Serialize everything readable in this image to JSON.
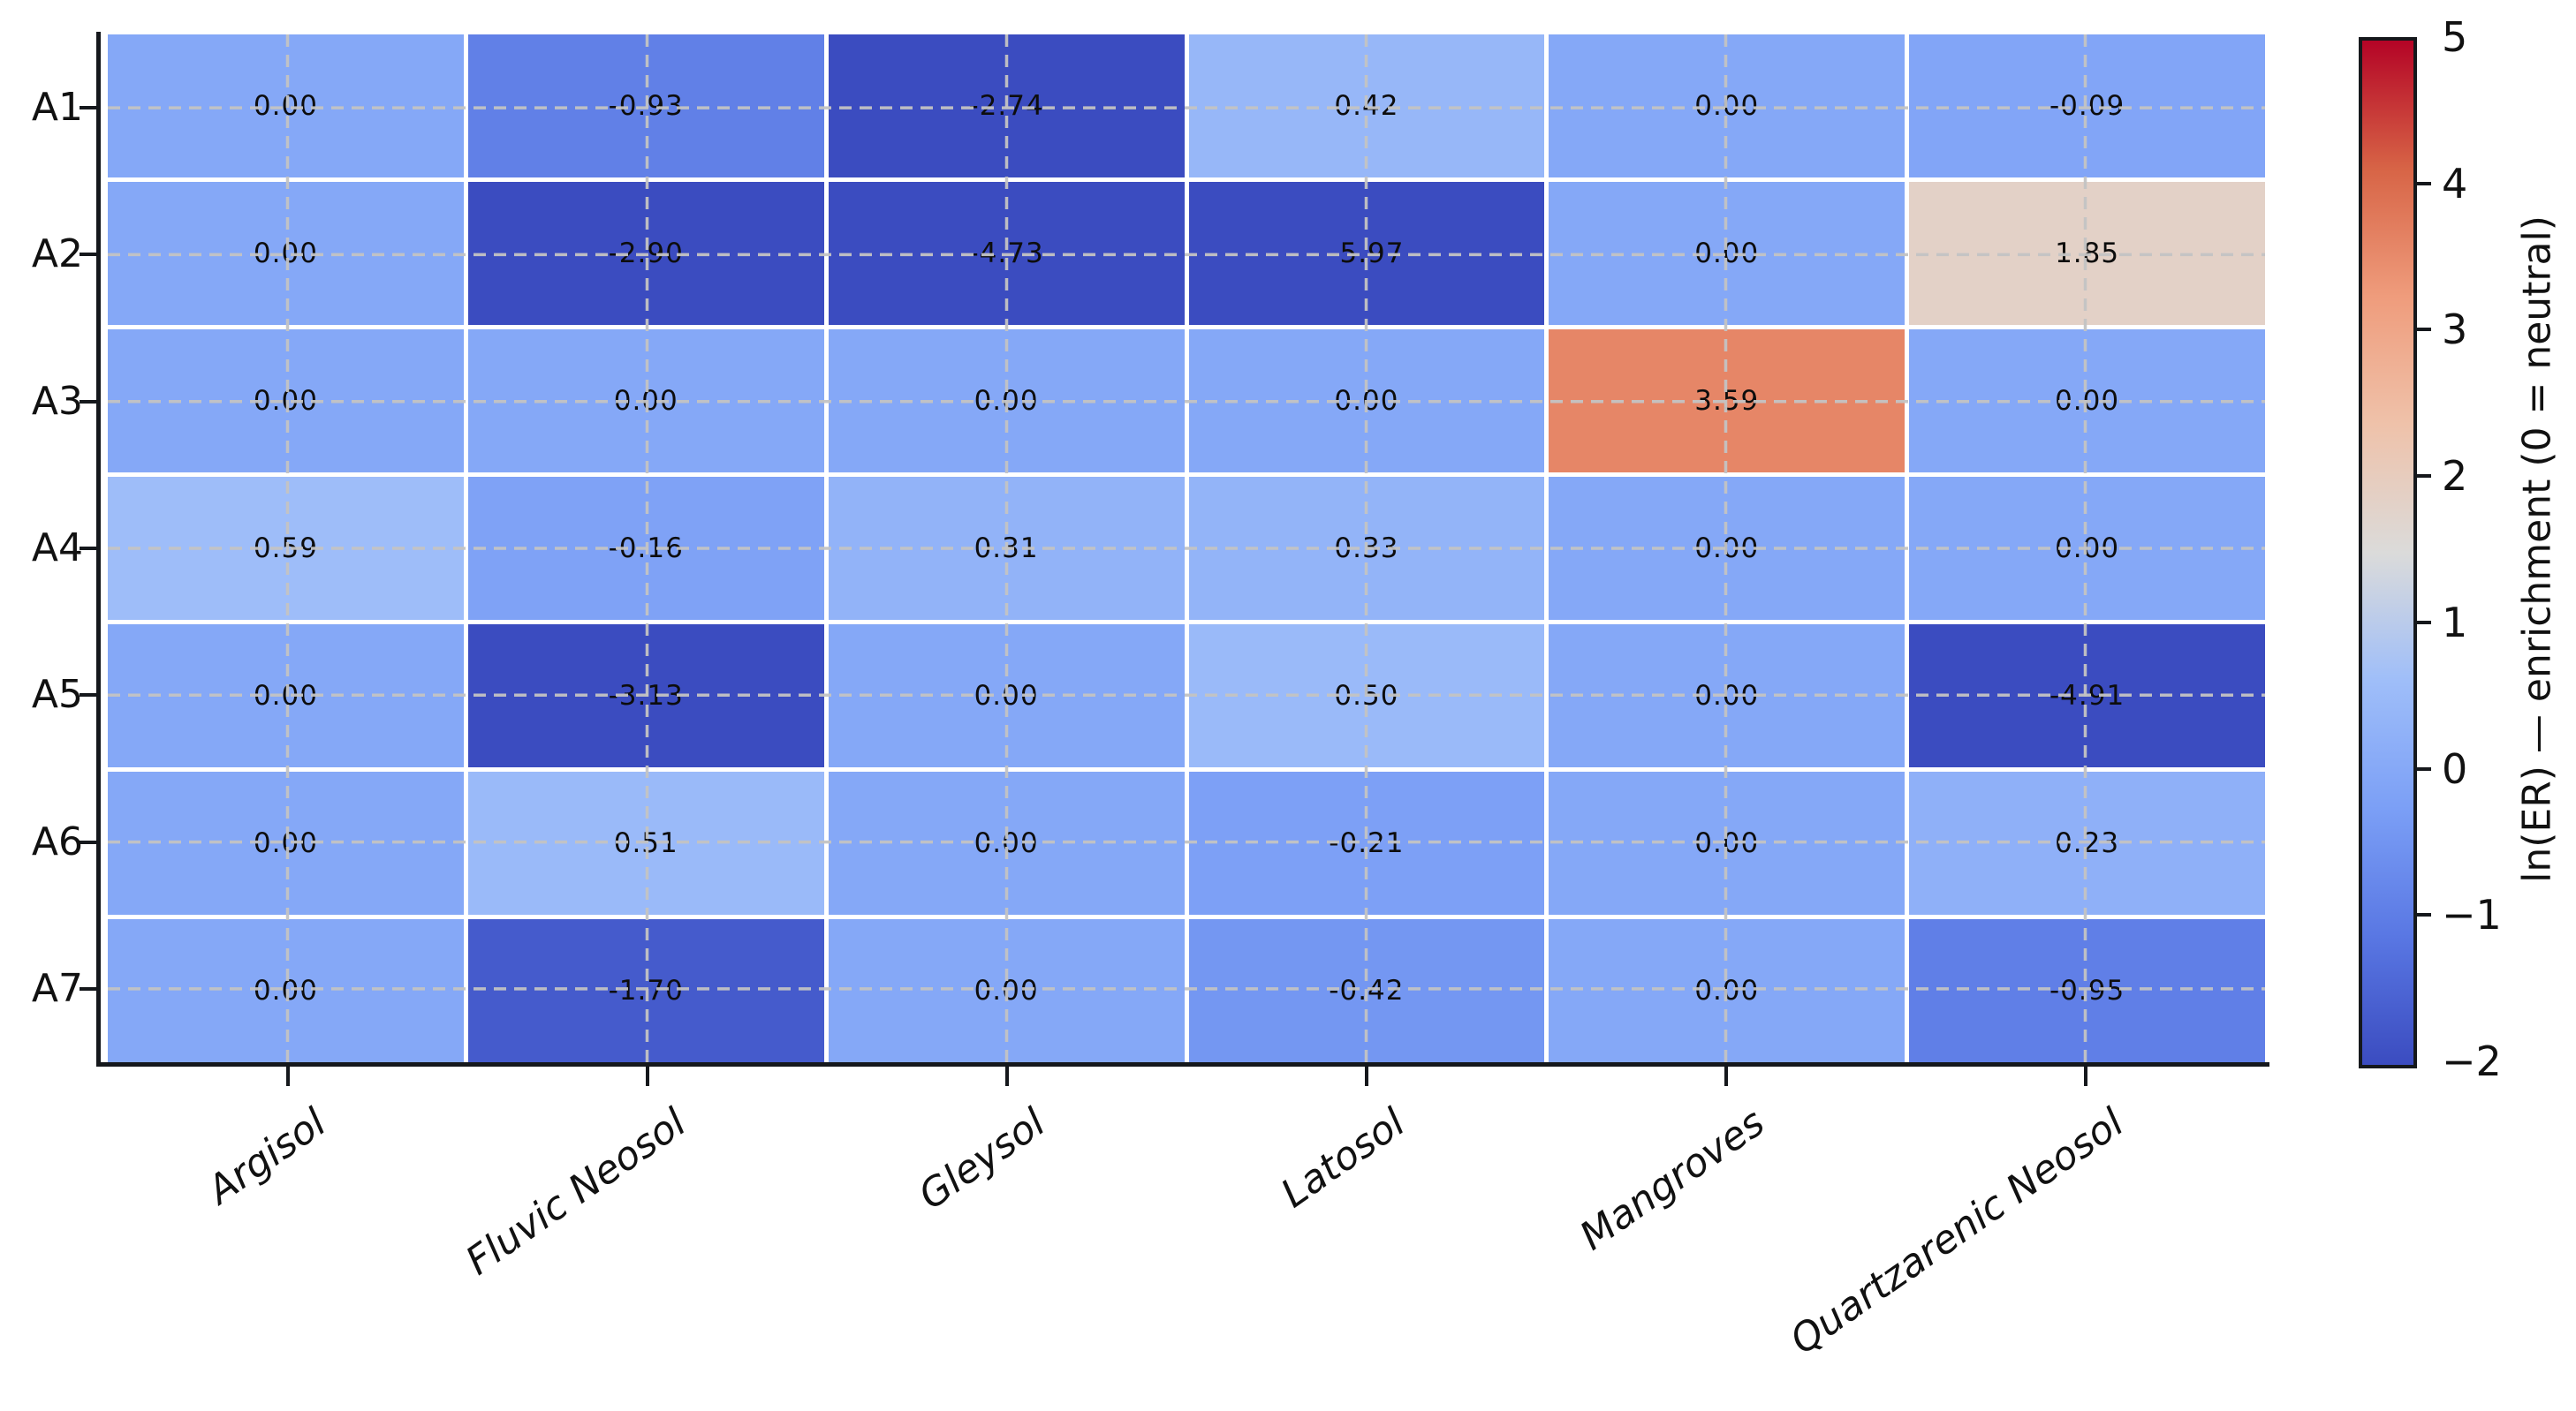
{
  "chart_data": {
    "type": "heatmap",
    "rows": [
      "A1",
      "A2",
      "A3",
      "A4",
      "A5",
      "A6",
      "A7"
    ],
    "columns": [
      "Argisol",
      "Fluvic Neosol",
      "Gleysol",
      "Latosol",
      "Mangroves",
      "Quartzarenic Neosol"
    ],
    "values": [
      [
        0.0,
        -0.93,
        -2.74,
        0.42,
        0.0,
        -0.09
      ],
      [
        0.0,
        -2.9,
        -4.73,
        -5.97,
        0.0,
        1.85
      ],
      [
        0.0,
        0.0,
        0.0,
        0.0,
        3.59,
        0.0
      ],
      [
        0.59,
        -0.16,
        0.31,
        0.33,
        0.0,
        0.0
      ],
      [
        0.0,
        -3.13,
        0.0,
        0.5,
        0.0,
        -4.91
      ],
      [
        0.0,
        0.51,
        0.0,
        -0.21,
        0.0,
        0.23
      ],
      [
        0.0,
        -1.7,
        0.0,
        -0.42,
        0.0,
        -0.95
      ]
    ],
    "value_format_decimals": 2,
    "annotation_color": "#0d0d0d",
    "grid": {
      "dashed": true,
      "color": "#c4c4c4"
    },
    "colormap": {
      "name": "coolwarm",
      "anchors": [
        [
          0.0,
          59,
          76,
          192
        ],
        [
          0.125,
          89,
          119,
          227
        ],
        [
          0.25,
          123,
          159,
          246
        ],
        [
          0.375,
          159,
          190,
          249
        ],
        [
          0.5,
          219,
          219,
          218
        ],
        [
          0.625,
          239,
          194,
          170
        ],
        [
          0.75,
          239,
          156,
          124
        ],
        [
          0.875,
          215,
          100,
          70
        ],
        [
          1.0,
          180,
          4,
          38
        ]
      ]
    },
    "colorbar": {
      "vmin": -2,
      "vmax": 5,
      "tick_values": [
        5,
        4,
        3,
        2,
        1,
        0,
        -1,
        -2
      ],
      "tick_labels": [
        "5",
        "4",
        "3",
        "2",
        "1",
        "0",
        "−1",
        "−2"
      ],
      "label": "ln(ER) — enrichment (0 = neutral)"
    }
  }
}
